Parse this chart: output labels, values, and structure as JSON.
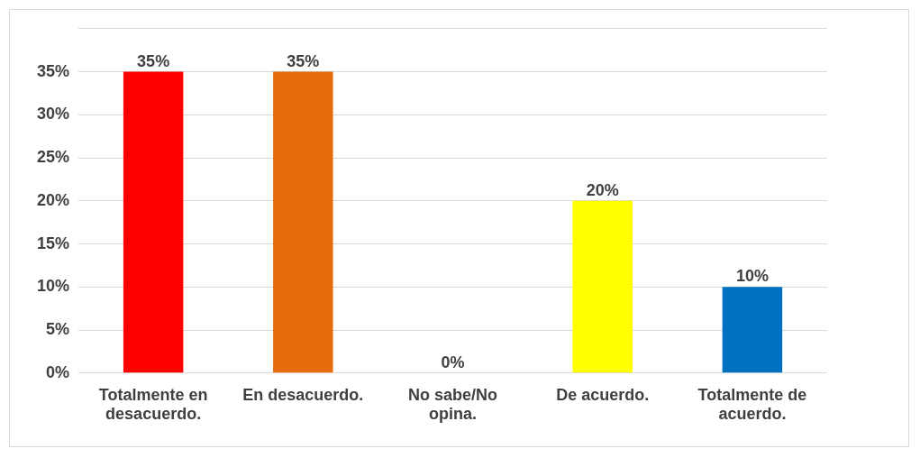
{
  "chart_data": {
    "type": "bar",
    "categories": [
      "Totalmente en desacuerdo.",
      "En desacuerdo.",
      "No sabe/No opina.",
      "De acuerdo.",
      "Totalmente de acuerdo."
    ],
    "values": [
      35,
      35,
      0,
      20,
      10
    ],
    "colors": [
      "#ff0000",
      "#e46c0a",
      "#4a2a0a",
      "#ffff00",
      "#0070c0"
    ],
    "value_labels": [
      "35%",
      "35%",
      "0%",
      "20%",
      "10%"
    ],
    "ylim": [
      0,
      40
    ],
    "yticks": [
      {
        "value": 0,
        "label": "0%"
      },
      {
        "value": 5,
        "label": "5%"
      },
      {
        "value": 10,
        "label": "10%"
      },
      {
        "value": 15,
        "label": "15%"
      },
      {
        "value": 20,
        "label": "20%"
      },
      {
        "value": 25,
        "label": "25%"
      },
      {
        "value": 30,
        "label": "30%"
      },
      {
        "value": 35,
        "label": "35%"
      },
      {
        "value": 40,
        "label": null
      }
    ],
    "grid": "y",
    "legend": false
  }
}
